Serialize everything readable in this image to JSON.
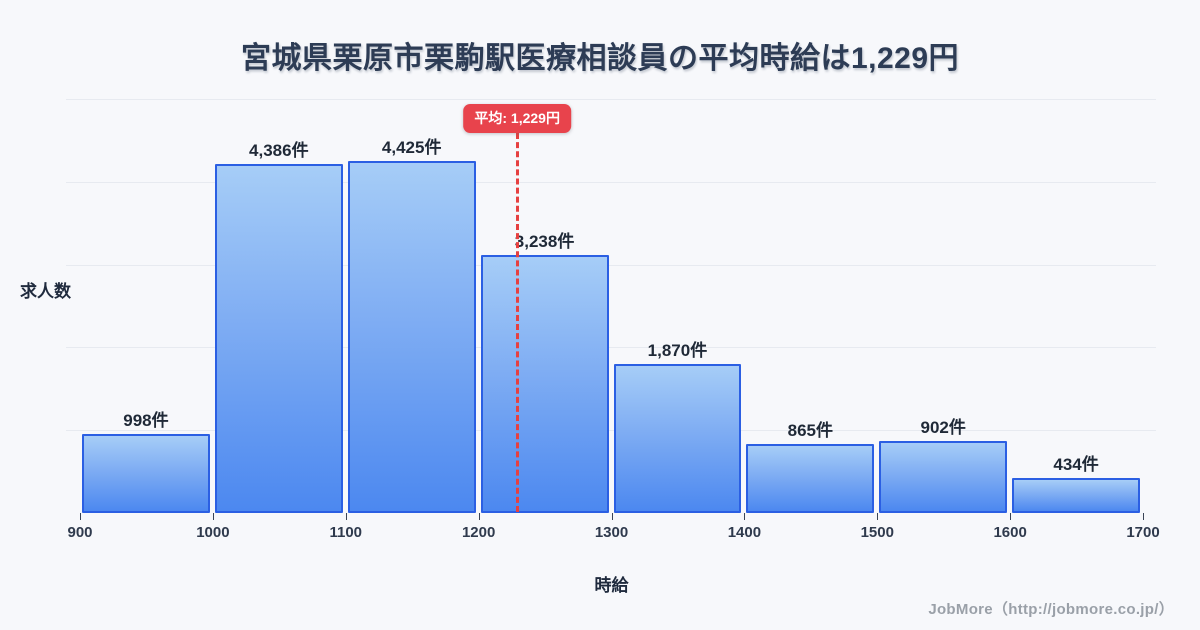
{
  "title": "宮城県栗原市栗駒駅医療相談員の平均時給は1,229円",
  "axes": {
    "y_title": "求人数",
    "x_title": "時給"
  },
  "average": {
    "badge_label": "平均: 1,229円",
    "value": 1229
  },
  "footer": {
    "credit": "JobMore（http://jobmore.co.jp/）"
  },
  "colors": {
    "background": "#f7f8fb",
    "title_text": "#2d3c55",
    "bar_fill_top": "#a6cdf7",
    "bar_fill_bottom": "#4c88f0",
    "bar_border": "#2b5fe3",
    "average_red": "#e8434c",
    "gridline": "#e7eaf0",
    "footer_text": "#9aa0a8"
  },
  "chart_data": {
    "type": "bar",
    "title": "宮城県栗原市栗駒駅医療相談員の平均時給は1,229円",
    "xlabel": "時給",
    "ylabel": "求人数",
    "bin_edges": [
      900,
      1000,
      1100,
      1200,
      1300,
      1400,
      1500,
      1600,
      1700
    ],
    "categories": [
      "900-1000",
      "1000-1100",
      "1100-1200",
      "1200-1300",
      "1300-1400",
      "1400-1500",
      "1500-1600",
      "1600-1700"
    ],
    "values": [
      998,
      4386,
      4425,
      3238,
      1870,
      865,
      902,
      434
    ],
    "value_labels": [
      "998件",
      "4,386件",
      "4,425件",
      "3,238件",
      "1,870件",
      "865件",
      "902件",
      "434件"
    ],
    "x_tick_labels": [
      "900",
      "1000",
      "1100",
      "1200",
      "1300",
      "1400",
      "1500",
      "1600",
      "1700"
    ],
    "xlim": [
      900,
      1700
    ],
    "ylim": [
      0,
      5200
    ],
    "average_value": 1229,
    "grid": true,
    "legend": false
  }
}
